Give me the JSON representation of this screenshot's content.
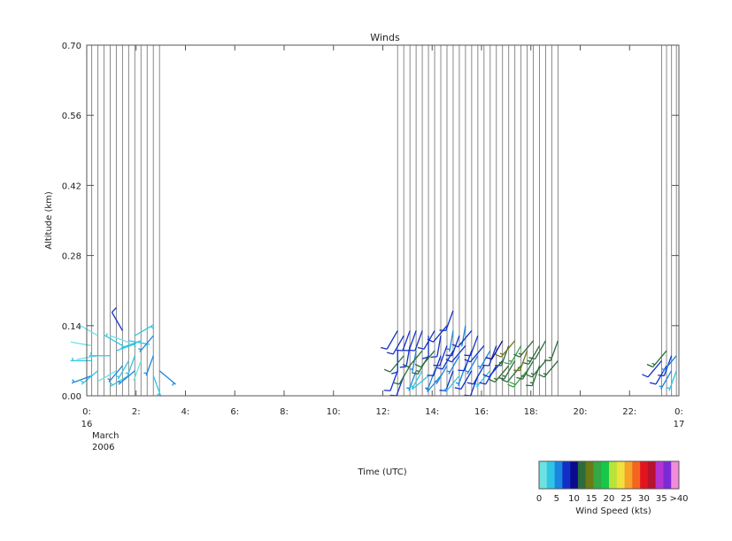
{
  "chart_data": {
    "type": "wind_barbs",
    "title": "Winds",
    "xlabel": "Time (UTC)",
    "ylabel": "Altitude (km)",
    "date_label": [
      "16",
      "March",
      "2006"
    ],
    "end_date_label": "17",
    "xlim_hours": [
      0,
      24
    ],
    "ylim_km": [
      0.0,
      0.7
    ],
    "x_ticks": [
      {
        "h": 0,
        "label": "0:"
      },
      {
        "h": 2,
        "label": "2:"
      },
      {
        "h": 4,
        "label": "4:"
      },
      {
        "h": 6,
        "label": "6:"
      },
      {
        "h": 8,
        "label": "8:"
      },
      {
        "h": 10,
        "label": "10:"
      },
      {
        "h": 12,
        "label": "12:"
      },
      {
        "h": 14,
        "label": "14:"
      },
      {
        "h": 16,
        "label": "16:"
      },
      {
        "h": 18,
        "label": "18:"
      },
      {
        "h": 20,
        "label": "20:"
      },
      {
        "h": 22,
        "label": "22:"
      },
      {
        "h": 24,
        "label": "0:"
      }
    ],
    "y_ticks": [
      {
        "v": 0.0,
        "label": "0.00"
      },
      {
        "v": 0.14,
        "label": "0.14"
      },
      {
        "v": 0.28,
        "label": "0.28"
      },
      {
        "v": 0.42,
        "label": "0.42"
      },
      {
        "v": 0.56,
        "label": "0.56"
      },
      {
        "v": 0.7,
        "label": "0.70"
      }
    ],
    "profile_times_hours": [
      0.2,
      0.45,
      0.7,
      0.95,
      1.2,
      1.45,
      1.7,
      1.95,
      2.2,
      2.45,
      2.7,
      2.95,
      12.6,
      12.85,
      13.1,
      13.35,
      13.6,
      13.85,
      14.1,
      14.35,
      14.6,
      14.85,
      15.1,
      15.35,
      15.6,
      15.85,
      16.1,
      16.35,
      16.6,
      16.85,
      17.1,
      17.35,
      17.6,
      17.85,
      18.1,
      18.35,
      18.6,
      18.85,
      19.1,
      23.3,
      23.5,
      23.7,
      23.9
    ],
    "winds": [
      {
        "t": 0.2,
        "z": 0.04,
        "spd": 7,
        "dir": 250
      },
      {
        "t": 0.2,
        "z": 0.07,
        "spd": 3,
        "dir": 270
      },
      {
        "t": 0.2,
        "z": 0.1,
        "spd": 2,
        "dir": 280
      },
      {
        "t": 0.45,
        "z": 0.05,
        "spd": 3,
        "dir": 230
      },
      {
        "t": 0.45,
        "z": 0.08,
        "spd": 2,
        "dir": 260
      },
      {
        "t": 0.45,
        "z": 0.12,
        "spd": 1,
        "dir": 300
      },
      {
        "t": 0.95,
        "z": 0.08,
        "spd": 3,
        "dir": 270
      },
      {
        "t": 0.95,
        "z": 0.12,
        "spd": 2,
        "dir": 110
      },
      {
        "t": 1.2,
        "z": 0.05,
        "spd": 2,
        "dir": 240
      },
      {
        "t": 1.2,
        "z": 0.09,
        "spd": 3,
        "dir": 70
      },
      {
        "t": 1.45,
        "z": 0.06,
        "spd": 5,
        "dir": 220
      },
      {
        "t": 1.45,
        "z": 0.1,
        "spd": 4,
        "dir": 300
      },
      {
        "t": 1.45,
        "z": 0.13,
        "spd": 8,
        "dir": 330
      },
      {
        "t": 1.7,
        "z": 0.04,
        "spd": 3,
        "dir": 240
      },
      {
        "t": 1.7,
        "z": 0.07,
        "spd": 4,
        "dir": 210
      },
      {
        "t": 1.7,
        "z": 0.11,
        "spd": 3,
        "dir": 100
      },
      {
        "t": 1.95,
        "z": 0.05,
        "spd": 6,
        "dir": 230
      },
      {
        "t": 1.95,
        "z": 0.08,
        "spd": 3,
        "dir": 200
      },
      {
        "t": 1.95,
        "z": 0.12,
        "spd": 3,
        "dir": 60
      },
      {
        "t": 2.2,
        "z": 0.07,
        "spd": 2,
        "dir": 200
      },
      {
        "t": 2.2,
        "z": 0.11,
        "spd": 3,
        "dir": 250
      },
      {
        "t": 2.7,
        "z": 0.04,
        "spd": 4,
        "dir": 160
      },
      {
        "t": 2.7,
        "z": 0.08,
        "spd": 6,
        "dir": 200
      },
      {
        "t": 2.7,
        "z": 0.12,
        "spd": 5,
        "dir": 220
      },
      {
        "t": 2.95,
        "z": 0.05,
        "spd": 5,
        "dir": 130
      },
      {
        "t": 12.6,
        "z": 0.05,
        "spd": 9,
        "dir": 200
      },
      {
        "t": 12.6,
        "z": 0.09,
        "spd": 9,
        "dir": 180
      },
      {
        "t": 12.6,
        "z": 0.13,
        "spd": 8,
        "dir": 210
      },
      {
        "t": 12.85,
        "z": 0.04,
        "spd": 9,
        "dir": 200
      },
      {
        "t": 12.85,
        "z": 0.08,
        "spd": 12,
        "dir": 220
      },
      {
        "t": 12.85,
        "z": 0.12,
        "spd": 9,
        "dir": 210
      },
      {
        "t": 13.1,
        "z": 0.06,
        "spd": 12,
        "dir": 210
      },
      {
        "t": 13.1,
        "z": 0.1,
        "spd": 9,
        "dir": 190
      },
      {
        "t": 13.1,
        "z": 0.13,
        "spd": 8,
        "dir": 200
      },
      {
        "t": 13.35,
        "z": 0.05,
        "spd": 7,
        "dir": 200
      },
      {
        "t": 13.35,
        "z": 0.09,
        "spd": 6,
        "dir": 190
      },
      {
        "t": 13.35,
        "z": 0.13,
        "spd": 9,
        "dir": 200
      },
      {
        "t": 13.6,
        "z": 0.05,
        "spd": 4,
        "dir": 210
      },
      {
        "t": 13.6,
        "z": 0.09,
        "spd": 12,
        "dir": 220
      },
      {
        "t": 13.6,
        "z": 0.13,
        "spd": 9,
        "dir": 200
      },
      {
        "t": 13.85,
        "z": 0.04,
        "spd": 4,
        "dir": 230
      },
      {
        "t": 13.85,
        "z": 0.08,
        "spd": 13,
        "dir": 210
      },
      {
        "t": 13.85,
        "z": 0.12,
        "spd": 9,
        "dir": 180
      },
      {
        "t": 14.1,
        "z": 0.05,
        "spd": 7,
        "dir": 200
      },
      {
        "t": 14.1,
        "z": 0.09,
        "spd": 12,
        "dir": 220
      },
      {
        "t": 14.1,
        "z": 0.13,
        "spd": 9,
        "dir": 210
      },
      {
        "t": 14.35,
        "z": 0.04,
        "spd": 6,
        "dir": 220
      },
      {
        "t": 14.35,
        "z": 0.08,
        "spd": 9,
        "dir": 200
      },
      {
        "t": 14.35,
        "z": 0.12,
        "spd": 8,
        "dir": 190
      },
      {
        "t": 14.6,
        "z": 0.06,
        "spd": 7,
        "dir": 210
      },
      {
        "t": 14.6,
        "z": 0.1,
        "spd": 9,
        "dir": 200
      },
      {
        "t": 14.6,
        "z": 0.14,
        "spd": 9,
        "dir": 220
      },
      {
        "t": 14.85,
        "z": 0.05,
        "spd": 8,
        "dir": 200
      },
      {
        "t": 14.85,
        "z": 0.09,
        "spd": 9,
        "dir": 210
      },
      {
        "t": 14.85,
        "z": 0.13,
        "spd": 6,
        "dir": 190
      },
      {
        "t": 14.85,
        "z": 0.17,
        "spd": 9,
        "dir": 200
      },
      {
        "t": 15.1,
        "z": 0.04,
        "spd": 4,
        "dir": 220
      },
      {
        "t": 15.1,
        "z": 0.08,
        "spd": 5,
        "dir": 210
      },
      {
        "t": 15.1,
        "z": 0.12,
        "spd": 9,
        "dir": 200
      },
      {
        "t": 15.35,
        "z": 0.06,
        "spd": 6,
        "dir": 200
      },
      {
        "t": 15.35,
        "z": 0.1,
        "spd": 8,
        "dir": 220
      },
      {
        "t": 15.35,
        "z": 0.14,
        "spd": 6,
        "dir": 190
      },
      {
        "t": 15.6,
        "z": 0.05,
        "spd": 9,
        "dir": 210
      },
      {
        "t": 15.6,
        "z": 0.09,
        "spd": 9,
        "dir": 200
      },
      {
        "t": 15.6,
        "z": 0.13,
        "spd": 8,
        "dir": 220
      },
      {
        "t": 15.85,
        "z": 0.04,
        "spd": 9,
        "dir": 200
      },
      {
        "t": 15.85,
        "z": 0.08,
        "spd": 7,
        "dir": 210
      },
      {
        "t": 15.85,
        "z": 0.12,
        "spd": 8,
        "dir": 200
      },
      {
        "t": 16.1,
        "z": 0.06,
        "spd": 8,
        "dir": 210
      },
      {
        "t": 16.1,
        "z": 0.1,
        "spd": 9,
        "dir": 220
      },
      {
        "t": 16.35,
        "z": 0.05,
        "spd": 3,
        "dir": 220
      },
      {
        "t": 16.35,
        "z": 0.09,
        "spd": 6,
        "dir": 210
      },
      {
        "t": 16.6,
        "z": 0.06,
        "spd": 8,
        "dir": 210
      },
      {
        "t": 16.6,
        "z": 0.1,
        "spd": 9,
        "dir": 200
      },
      {
        "t": 16.85,
        "z": 0.07,
        "spd": 9,
        "dir": 220
      },
      {
        "t": 16.85,
        "z": 0.11,
        "spd": 11,
        "dir": 210
      },
      {
        "t": 17.1,
        "z": 0.06,
        "spd": 13,
        "dir": 220
      },
      {
        "t": 17.1,
        "z": 0.1,
        "spd": 14,
        "dir": 200
      },
      {
        "t": 17.35,
        "z": 0.07,
        "spd": 14,
        "dir": 210
      },
      {
        "t": 17.35,
        "z": 0.11,
        "spd": 16,
        "dir": 220
      },
      {
        "t": 17.6,
        "z": 0.06,
        "spd": 12,
        "dir": 220
      },
      {
        "t": 17.6,
        "z": 0.1,
        "spd": 17,
        "dir": 210
      },
      {
        "t": 17.85,
        "z": 0.05,
        "spd": 18,
        "dir": 220
      },
      {
        "t": 17.85,
        "z": 0.09,
        "spd": 16,
        "dir": 200
      },
      {
        "t": 18.1,
        "z": 0.07,
        "spd": 13,
        "dir": 210
      },
      {
        "t": 18.1,
        "z": 0.11,
        "spd": 14,
        "dir": 220
      },
      {
        "t": 18.35,
        "z": 0.06,
        "spd": 14,
        "dir": 200
      },
      {
        "t": 18.35,
        "z": 0.1,
        "spd": 13,
        "dir": 210
      },
      {
        "t": 18.6,
        "z": 0.07,
        "spd": 13,
        "dir": 220
      },
      {
        "t": 18.6,
        "z": 0.11,
        "spd": 12,
        "dir": 210
      },
      {
        "t": 19.1,
        "z": 0.07,
        "spd": 13,
        "dir": 220
      },
      {
        "t": 19.1,
        "z": 0.11,
        "spd": 14,
        "dir": 200
      },
      {
        "t": 23.3,
        "z": 0.07,
        "spd": 9,
        "dir": 220
      },
      {
        "t": 23.5,
        "z": 0.06,
        "spd": 9,
        "dir": 210
      },
      {
        "t": 23.5,
        "z": 0.09,
        "spd": 13,
        "dir": 220
      },
      {
        "t": 23.7,
        "z": 0.05,
        "spd": 7,
        "dir": 210
      },
      {
        "t": 23.7,
        "z": 0.08,
        "spd": 9,
        "dir": 200
      },
      {
        "t": 23.9,
        "z": 0.05,
        "spd": 4,
        "dir": 200
      },
      {
        "t": 23.9,
        "z": 0.08,
        "spd": 5,
        "dir": 220
      }
    ],
    "colorbar": {
      "label": "Wind Speed (kts)",
      "tick_labels": [
        "0",
        "5",
        "10",
        "15",
        "20",
        "25",
        "30",
        "35",
        ">40"
      ],
      "colors": [
        "#6ee1e1",
        "#2fc6e6",
        "#1a86e0",
        "#1230c8",
        "#0b0b90",
        "#2d6b3a",
        "#6b7a14",
        "#33a845",
        "#16c84a",
        "#b7e33a",
        "#f0e23a",
        "#f6a32a",
        "#f5651f",
        "#e3141d",
        "#b81230",
        "#b533d0",
        "#7b2ad6",
        "#f18bdc"
      ]
    }
  }
}
